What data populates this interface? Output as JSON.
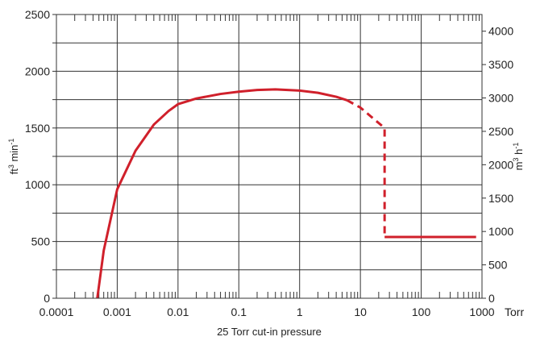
{
  "chart_data": {
    "type": "line",
    "xscale": "log",
    "xlim": [
      0.0001,
      1000
    ],
    "x_ticks": [
      "0.0001",
      "0.001",
      "0.01",
      "0.1",
      "1",
      "10",
      "100",
      "1000"
    ],
    "x_unit": "Torr",
    "xlabel": "25 Torr cut-in pressure",
    "ylim": [
      0,
      2500
    ],
    "y_ticks": [
      "0",
      "500",
      "1000",
      "1500",
      "2000",
      "2500"
    ],
    "ylabel": {
      "base": "ft",
      "sup1": "3",
      "mid": " min",
      "sup2": "-1"
    },
    "y2lim": [
      0,
      4250
    ],
    "y2_ticks": [
      "0",
      "500",
      "1000",
      "1500",
      "2000",
      "2500",
      "3000",
      "3500",
      "4000"
    ],
    "y2label": {
      "base": "m",
      "sup1": "3",
      "mid": " h",
      "sup2": "-1"
    },
    "grid": true,
    "line_color": "#d0202b",
    "series": [
      {
        "style": "solid",
        "points": [
          [
            0.00047,
            0
          ],
          [
            0.0006,
            420
          ],
          [
            0.001,
            960
          ],
          [
            0.002,
            1300
          ],
          [
            0.004,
            1530
          ],
          [
            0.007,
            1650
          ],
          [
            0.01,
            1710
          ],
          [
            0.02,
            1760
          ],
          [
            0.05,
            1800
          ],
          [
            0.1,
            1820
          ],
          [
            0.2,
            1835
          ],
          [
            0.4,
            1840
          ],
          [
            1,
            1830
          ],
          [
            2,
            1810
          ],
          [
            4,
            1775
          ],
          [
            6,
            1745
          ]
        ]
      },
      {
        "style": "dashed",
        "points": [
          [
            6,
            1745
          ],
          [
            10,
            1680
          ],
          [
            15,
            1600
          ],
          [
            25,
            1500
          ],
          [
            25,
            540
          ]
        ]
      },
      {
        "style": "solid",
        "points": [
          [
            25,
            540
          ],
          [
            800,
            540
          ]
        ]
      }
    ]
  }
}
